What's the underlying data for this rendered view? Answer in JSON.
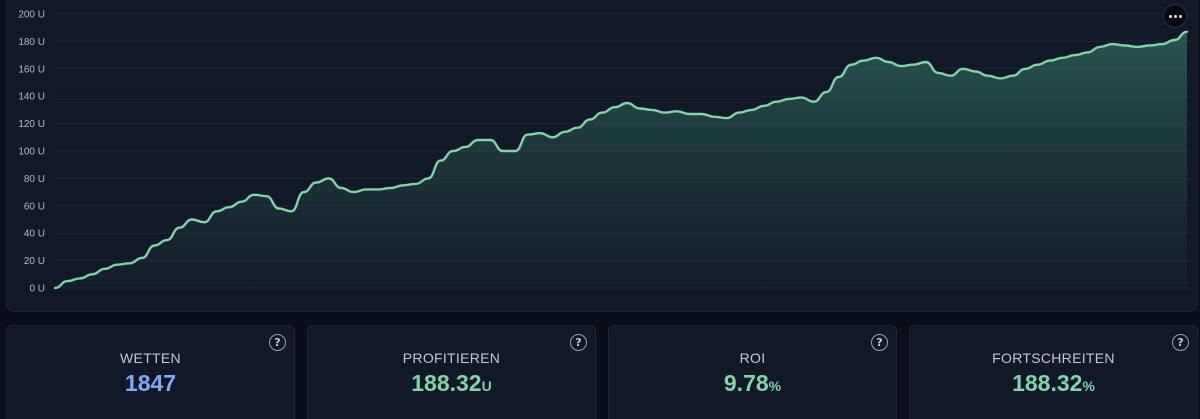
{
  "chart_data": {
    "type": "area",
    "yticks": [
      "0 U",
      "20 U",
      "40 U",
      "60 U",
      "80 U",
      "100 U",
      "120 U",
      "140 U",
      "160 U",
      "180 U",
      "200 U"
    ],
    "ylim": [
      0,
      200
    ],
    "grid": true,
    "line_color": "#7fd4a8",
    "values": [
      0,
      5,
      7,
      10,
      14,
      17,
      18,
      22,
      31,
      35,
      44,
      50,
      48,
      56,
      59,
      63,
      68,
      67,
      58,
      56,
      70,
      77,
      80,
      73,
      70,
      72,
      72,
      73,
      75,
      76,
      80,
      93,
      100,
      103,
      108,
      108,
      100,
      100,
      112,
      113,
      110,
      114,
      117,
      123,
      128,
      132,
      135,
      131,
      130,
      128,
      129,
      127,
      127,
      125,
      124,
      128,
      130,
      133,
      136,
      138,
      139,
      136,
      143,
      154,
      163,
      166,
      168,
      165,
      162,
      163,
      165,
      157,
      155,
      160,
      158,
      155,
      153,
      155,
      160,
      163,
      166,
      168,
      170,
      172,
      176,
      178,
      177,
      176,
      177,
      178,
      181,
      187
    ]
  },
  "menu_icon": "more-horizontal-icon",
  "stats": [
    {
      "label": "WETTEN",
      "value": "1847",
      "unit": "",
      "color": "#7fa8f5"
    },
    {
      "label": "PROFITIEREN",
      "value": "188.32",
      "unit": "U",
      "color": "#7fd4a8"
    },
    {
      "label": "ROI",
      "value": "9.78",
      "unit": "%",
      "color": "#7fd4a8"
    },
    {
      "label": "FORTSCHREITEN",
      "value": "188.32",
      "unit": "%",
      "color": "#7fd4a8"
    }
  ],
  "help_icon": "help-circle-icon",
  "help_glyph": "?"
}
